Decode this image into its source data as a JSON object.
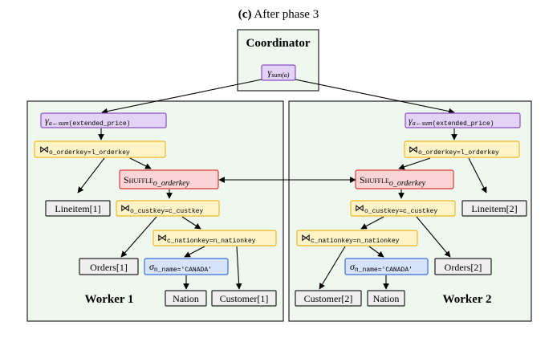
{
  "caption": {
    "tag": "(c)",
    "text": "After phase 3"
  },
  "coordinator": {
    "title": "Coordinator",
    "agg_symbol": "γ",
    "agg_sub": "sum(a)"
  },
  "workers": [
    {
      "label": "Worker 1",
      "agg": {
        "symbol": "γ",
        "sub_italic": "a←sum",
        "sub_mono": "(extended_price)"
      },
      "join_top": {
        "symbol": "⋈",
        "sub": "o_orderkey=l_orderkey"
      },
      "shuffle": {
        "caps": "Shuffle",
        "sub": "o_orderkey"
      },
      "lineitem": "Lineitem[1]",
      "join_mid": {
        "symbol": "⋈",
        "sub": "o_custkey=c_custkey"
      },
      "join_bottom": {
        "symbol": "⋈",
        "sub": "c_nationkey=n_nationkey"
      },
      "orders": "Orders[1]",
      "select": {
        "symbol": "σ",
        "sub": "n_name='CANADA'"
      },
      "nation": "Nation",
      "customer": "Customer[1]"
    },
    {
      "label": "Worker 2",
      "agg": {
        "symbol": "γ",
        "sub_italic": "a←sum",
        "sub_mono": "(extended_price)"
      },
      "join_top": {
        "symbol": "⋈",
        "sub": "o_orderkey=l_orderkey"
      },
      "shuffle": {
        "caps": "Shuffle",
        "sub": "o_orderkey"
      },
      "lineitem": "Lineitem[2]",
      "join_mid": {
        "symbol": "⋈",
        "sub": "o_custkey=c_custkey"
      },
      "join_bottom": {
        "symbol": "⋈",
        "sub": "c_nationkey=n_nationkey"
      },
      "orders": "Orders[2]",
      "select": {
        "symbol": "σ",
        "sub": "n_name='CANADA'"
      },
      "nation": "Nation",
      "customer": "Customer[2]"
    }
  ],
  "colors": {
    "panel_fill": "#eef8ee",
    "agg_fill": "#e3d3f5",
    "agg_stroke": "#8a4fc4",
    "join_fill": "#fff3c8",
    "join_stroke": "#f0b820",
    "shuffle_fill": "#fbd5d5",
    "shuffle_stroke": "#d63a3a",
    "select_fill": "#d6e3fb",
    "select_stroke": "#3f6fd8",
    "table_fill": "#efefef",
    "table_stroke": "#222222"
  }
}
